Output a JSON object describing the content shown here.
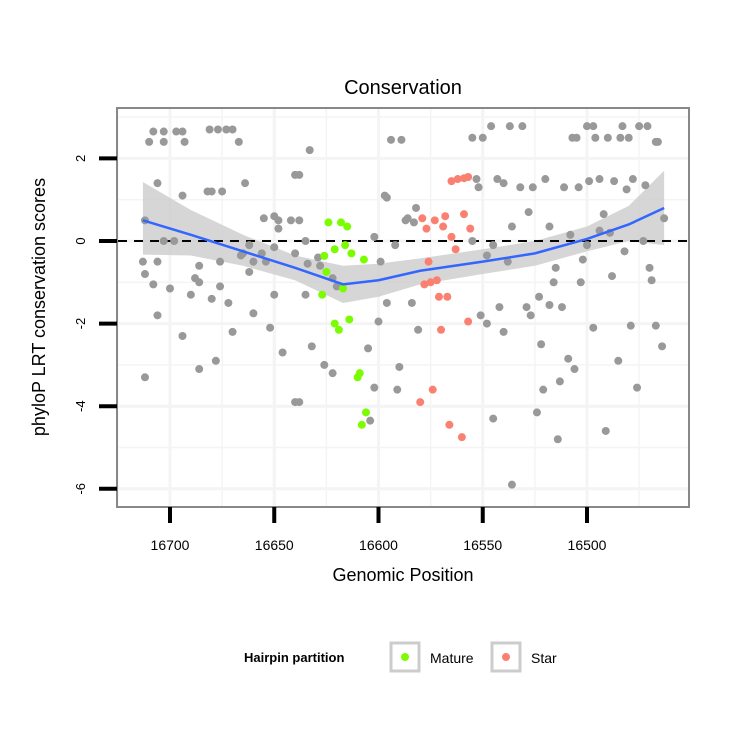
{
  "chart_data": {
    "type": "scatter",
    "title": "Conservation",
    "xlabel": "Genomic Position",
    "ylabel": "phyloP LRT conservation scores",
    "xlim": [
      16725,
      16450
    ],
    "x_reversed": true,
    "ylim": [
      -6.4,
      3.2
    ],
    "x_ticks": [
      16700,
      16650,
      16600,
      16550,
      16500
    ],
    "x_tick_labels": [
      "16700",
      "16650",
      "16600",
      "16550",
      "16500"
    ],
    "y_ticks": [
      2,
      0,
      -2,
      -4,
      -6
    ],
    "y_tick_labels": [
      "2",
      "0",
      "-2",
      "-4",
      "-6"
    ],
    "reference_line": {
      "y": 0,
      "style": "dashed"
    },
    "grid": true,
    "legend": {
      "title": "Hairpin partition",
      "position": "bottom",
      "entries": [
        {
          "label": "Mature",
          "color": "#7CFC00"
        },
        {
          "label": "Star",
          "color": "#FA8072"
        }
      ]
    },
    "colors": {
      "other": "#999999",
      "smooth": "#3366FF",
      "ribbon": "#cccccc"
    },
    "series": [
      {
        "name": "Other",
        "points": [
          [
            16712,
            0.5
          ],
          [
            16708,
            2.65
          ],
          [
            16703,
            2.65
          ],
          [
            16697,
            2.65
          ],
          [
            16694,
            2.65
          ],
          [
            16681,
            2.7
          ],
          [
            16677,
            2.7
          ],
          [
            16673,
            2.7
          ],
          [
            16670,
            2.7
          ],
          [
            16710,
            2.4
          ],
          [
            16703,
            2.4
          ],
          [
            16693,
            2.4
          ],
          [
            16667,
            2.4
          ],
          [
            16706,
            1.4
          ],
          [
            16694,
            1.1
          ],
          [
            16682,
            1.2
          ],
          [
            16680,
            1.2
          ],
          [
            16675,
            1.2
          ],
          [
            16664,
            1.4
          ],
          [
            16640,
            1.6
          ],
          [
            16638,
            1.6
          ],
          [
            16633,
            2.2
          ],
          [
            16650,
            0.6
          ],
          [
            16642,
            0.5
          ],
          [
            16703,
            0.0
          ],
          [
            16698,
            0.0
          ],
          [
            16713,
            -0.5
          ],
          [
            16706,
            -0.5
          ],
          [
            16712,
            -0.8
          ],
          [
            16708,
            -1.05
          ],
          [
            16700,
            -1.15
          ],
          [
            16686,
            -1.0
          ],
          [
            16676,
            -1.1
          ],
          [
            16676,
            -0.5
          ],
          [
            16665,
            -0.3
          ],
          [
            16662,
            -0.1
          ],
          [
            16656,
            -0.3
          ],
          [
            16654,
            -0.5
          ],
          [
            16650,
            -0.15
          ],
          [
            16648,
            0.3
          ],
          [
            16640,
            -0.3
          ],
          [
            16634,
            -0.55
          ],
          [
            16628,
            -0.6
          ],
          [
            16622,
            -0.9
          ],
          [
            16686,
            -0.6
          ],
          [
            16688,
            -0.9
          ],
          [
            16690,
            -1.3
          ],
          [
            16680,
            -1.4
          ],
          [
            16672,
            -1.5
          ],
          [
            16706,
            -1.8
          ],
          [
            16694,
            -2.3
          ],
          [
            16670,
            -2.2
          ],
          [
            16660,
            -1.75
          ],
          [
            16652,
            -2.1
          ],
          [
            16646,
            -2.7
          ],
          [
            16632,
            -2.55
          ],
          [
            16626,
            -3.0
          ],
          [
            16622,
            -3.2
          ],
          [
            16712,
            -3.3
          ],
          [
            16686,
            -3.1
          ],
          [
            16678,
            -2.9
          ],
          [
            16640,
            -3.9
          ],
          [
            16638,
            -3.9
          ],
          [
            16662,
            -0.75
          ],
          [
            16660,
            -0.5
          ],
          [
            16666,
            -0.35
          ],
          [
            16650,
            -1.3
          ],
          [
            16635,
            -1.3
          ],
          [
            16620,
            -1.1
          ],
          [
            16594,
            2.45
          ],
          [
            16589,
            2.45
          ],
          [
            16597,
            1.1
          ],
          [
            16596,
            1.05
          ],
          [
            16587,
            0.5
          ],
          [
            16655,
            0.55
          ],
          [
            16648,
            0.5
          ],
          [
            16638,
            0.5
          ],
          [
            16635,
            0.0
          ],
          [
            16629,
            -0.4
          ],
          [
            16602,
            0.1
          ],
          [
            16599,
            -0.5
          ],
          [
            16592,
            -0.1
          ],
          [
            16596,
            -1.5
          ],
          [
            16600,
            -1.95
          ],
          [
            16605,
            -2.6
          ],
          [
            16602,
            -3.55
          ],
          [
            16591,
            -3.6
          ],
          [
            16590,
            -3.05
          ],
          [
            16604,
            -4.35
          ],
          [
            16546,
            2.78
          ],
          [
            16537,
            2.78
          ],
          [
            16531,
            2.78
          ],
          [
            16500,
            2.78
          ],
          [
            16497,
            2.78
          ],
          [
            16483,
            2.78
          ],
          [
            16475,
            2.78
          ],
          [
            16471,
            2.78
          ],
          [
            16555,
            2.5
          ],
          [
            16550,
            2.5
          ],
          [
            16507,
            2.5
          ],
          [
            16505,
            2.5
          ],
          [
            16496,
            2.5
          ],
          [
            16490,
            2.5
          ],
          [
            16484,
            2.5
          ],
          [
            16480,
            2.5
          ],
          [
            16467,
            2.4
          ],
          [
            16466,
            2.4
          ],
          [
            16553,
            1.5
          ],
          [
            16552,
            1.3
          ],
          [
            16543,
            1.5
          ],
          [
            16540,
            1.4
          ],
          [
            16532,
            1.3
          ],
          [
            16526,
            1.3
          ],
          [
            16520,
            1.5
          ],
          [
            16511,
            1.3
          ],
          [
            16504,
            1.3
          ],
          [
            16499,
            1.45
          ],
          [
            16494,
            1.5
          ],
          [
            16487,
            1.45
          ],
          [
            16481,
            1.25
          ],
          [
            16478,
            1.5
          ],
          [
            16472,
            1.35
          ],
          [
            16555,
            0.0
          ],
          [
            16548,
            -0.35
          ],
          [
            16545,
            -0.1
          ],
          [
            16538,
            -0.5
          ],
          [
            16536,
            0.35
          ],
          [
            16528,
            0.7
          ],
          [
            16518,
            0.35
          ],
          [
            16508,
            0.15
          ],
          [
            16500,
            -0.1
          ],
          [
            16494,
            0.25
          ],
          [
            16489,
            0.2
          ],
          [
            16492,
            0.65
          ],
          [
            16482,
            -0.25
          ],
          [
            16473,
            0.0
          ],
          [
            16463,
            0.55
          ],
          [
            16470,
            -0.65
          ],
          [
            16469,
            -0.95
          ],
          [
            16502,
            -0.45
          ],
          [
            16515,
            -0.65
          ],
          [
            16516,
            -1.0
          ],
          [
            16503,
            -1.0
          ],
          [
            16488,
            -0.85
          ],
          [
            16523,
            -1.35
          ],
          [
            16518,
            -1.55
          ],
          [
            16512,
            -1.6
          ],
          [
            16529,
            -1.6
          ],
          [
            16527,
            -1.8
          ],
          [
            16542,
            -1.6
          ],
          [
            16551,
            -1.8
          ],
          [
            16548,
            -2.0
          ],
          [
            16540,
            -2.2
          ],
          [
            16497,
            -2.1
          ],
          [
            16479,
            -2.05
          ],
          [
            16467,
            -2.05
          ],
          [
            16464,
            -2.55
          ],
          [
            16522,
            -2.5
          ],
          [
            16509,
            -2.85
          ],
          [
            16506,
            -3.1
          ],
          [
            16485,
            -2.9
          ],
          [
            16513,
            -3.4
          ],
          [
            16521,
            -3.6
          ],
          [
            16476,
            -3.55
          ],
          [
            16524,
            -4.15
          ],
          [
            16545,
            -4.3
          ],
          [
            16491,
            -4.6
          ],
          [
            16514,
            -4.8
          ],
          [
            16536,
            -5.9
          ],
          [
            16581,
            -2.15
          ],
          [
            16584,
            -1.5
          ],
          [
            16582,
            0.8
          ],
          [
            16586,
            0.55
          ],
          [
            16583,
            0.45
          ]
        ]
      },
      {
        "name": "Mature",
        "points": [
          [
            16624,
            0.45
          ],
          [
            16618,
            0.45
          ],
          [
            16615,
            0.35
          ],
          [
            16626,
            -0.36
          ],
          [
            16621,
            -0.2
          ],
          [
            16616,
            -0.1
          ],
          [
            16613,
            -0.3
          ],
          [
            16607,
            -0.45
          ],
          [
            16625,
            -0.75
          ],
          [
            16617,
            -1.15
          ],
          [
            16627,
            -1.3
          ],
          [
            16614,
            -1.9
          ],
          [
            16621,
            -2.0
          ],
          [
            16619,
            -2.15
          ],
          [
            16610,
            -3.3
          ],
          [
            16609,
            -3.2
          ],
          [
            16606,
            -4.15
          ],
          [
            16608,
            -4.45
          ]
        ]
      },
      {
        "name": "Star",
        "points": [
          [
            16565,
            1.45
          ],
          [
            16562,
            1.5
          ],
          [
            16559,
            1.52
          ],
          [
            16557,
            1.55
          ],
          [
            16579,
            0.55
          ],
          [
            16573,
            0.5
          ],
          [
            16568,
            0.6
          ],
          [
            16559,
            0.65
          ],
          [
            16577,
            0.3
          ],
          [
            16569,
            0.35
          ],
          [
            16565,
            0.1
          ],
          [
            16556,
            0.3
          ],
          [
            16563,
            -0.2
          ],
          [
            16576,
            -0.5
          ],
          [
            16578,
            -1.05
          ],
          [
            16575,
            -1.0
          ],
          [
            16572,
            -0.95
          ],
          [
            16571,
            -1.35
          ],
          [
            16567,
            -1.35
          ],
          [
            16570,
            -2.15
          ],
          [
            16557,
            -1.95
          ],
          [
            16574,
            -3.6
          ],
          [
            16580,
            -3.9
          ],
          [
            16566,
            -4.45
          ],
          [
            16560,
            -4.75
          ]
        ]
      }
    ],
    "smooth": {
      "x": [
        16713,
        16690,
        16665,
        16640,
        16617,
        16600,
        16580,
        16550,
        16525,
        16500,
        16480,
        16463
      ],
      "y": [
        0.5,
        0.15,
        -0.25,
        -0.65,
        -1.05,
        -0.95,
        -0.72,
        -0.5,
        -0.3,
        0.05,
        0.4,
        0.8
      ],
      "lo": [
        -0.33,
        -0.35,
        -0.6,
        -0.95,
        -1.5,
        -1.35,
        -1.05,
        -0.8,
        -0.6,
        -0.25,
        0.0,
        -0.1
      ],
      "hi": [
        1.43,
        0.75,
        0.15,
        -0.35,
        -0.6,
        -0.55,
        -0.42,
        -0.2,
        0.0,
        0.35,
        0.85,
        1.7
      ]
    }
  }
}
